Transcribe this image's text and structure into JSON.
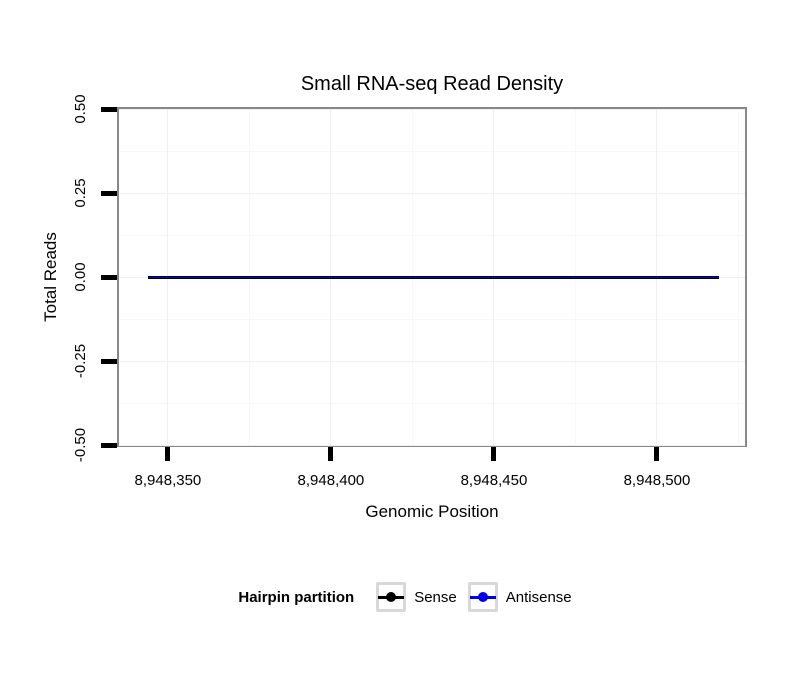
{
  "title": "Small RNA-seq Read Density",
  "chart_data": {
    "type": "line",
    "title": "Small RNA-seq Read Density",
    "xlabel": "Genomic Position",
    "ylabel": "Total Reads",
    "xlim": [
      8948335,
      8948527
    ],
    "ylim": [
      -0.5,
      0.5
    ],
    "grid": true,
    "legend_position": "bottom",
    "x_ticks": [
      {
        "value": 8948350,
        "label": "8,948,350"
      },
      {
        "value": 8948400,
        "label": "8,948,400"
      },
      {
        "value": 8948450,
        "label": "8,948,450"
      },
      {
        "value": 8948500,
        "label": "8,948,500"
      }
    ],
    "y_ticks": [
      {
        "value": 0.5,
        "label": "0.50"
      },
      {
        "value": 0.25,
        "label": "0.25"
      },
      {
        "value": 0.0,
        "label": "0.00"
      },
      {
        "value": -0.25,
        "label": "-0.25"
      },
      {
        "value": -0.5,
        "label": "-0.50"
      }
    ],
    "x_minor_gridlines": [
      8948375,
      8948425,
      8948475,
      8948525
    ],
    "y_minor_gridlines": [
      0.375,
      0.125,
      -0.125,
      -0.375
    ],
    "series": [
      {
        "name": "Sense",
        "color": "#000000",
        "x": [
          8948344,
          8948519
        ],
        "y": [
          0,
          0
        ]
      },
      {
        "name": "Antisense",
        "color": "#0000EE",
        "x": [
          8948344,
          8948519
        ],
        "y": [
          0,
          0
        ]
      }
    ]
  },
  "legend": {
    "title": "Hairpin partition",
    "items": [
      {
        "label": "Sense",
        "color": "#000000"
      },
      {
        "label": "Antisense",
        "color": "#0000EE"
      }
    ]
  },
  "colors": {
    "panel_border": "#888888",
    "grid_major": "#f0f0f0",
    "grid_minor": "#f8f8f8",
    "tick_mark": "#000000",
    "legend_key_border": "#d8d8d8"
  }
}
